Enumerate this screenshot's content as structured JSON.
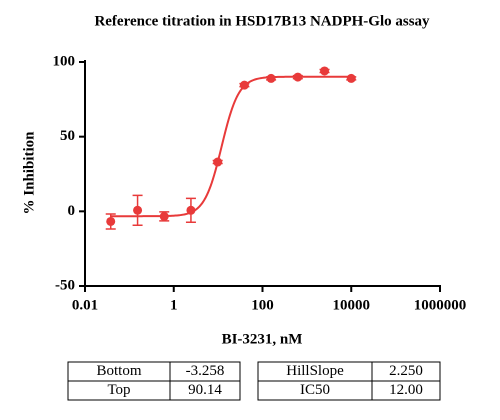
{
  "chart_data": {
    "type": "scatter",
    "title": "Reference titration in HSD17B13 NADPH-Glo assay",
    "x_label": "BI-3231, nM",
    "y_label": "% Inhibition",
    "x": [
      0.038,
      0.153,
      0.61,
      2.44,
      9.77,
      39.06,
      156.25,
      625,
      2500,
      10000
    ],
    "values": [
      -6.8,
      0.7,
      -3.4,
      0.7,
      33,
      84.5,
      89,
      89.9,
      94,
      89
    ],
    "errors": [
      5,
      10,
      3,
      8,
      1,
      1,
      1,
      1,
      1,
      1
    ],
    "color": "#e83a3a",
    "log_x": true,
    "xlim": [
      0.01,
      1000000
    ],
    "xticks": [
      0.01,
      1,
      100,
      10000,
      1000000
    ],
    "ylim": [
      -50,
      100
    ],
    "yticks": [
      -50,
      0,
      50,
      100
    ],
    "fit": {
      "names": [
        "Bottom",
        "Top",
        "HillSlope",
        "IC50"
      ],
      "values": [
        -3.258,
        90.14,
        2.25,
        12
      ],
      "value_labels": [
        "-3.258",
        "90.14",
        "2.250",
        "12.00"
      ]
    }
  }
}
